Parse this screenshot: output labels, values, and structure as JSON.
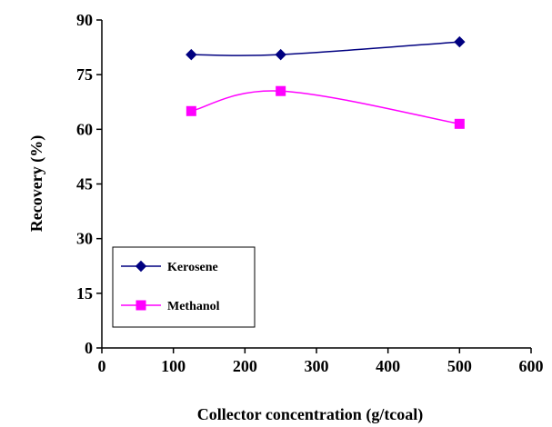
{
  "chart_data": {
    "type": "line",
    "xlabel": "Collector concentration (g/tcoal)",
    "ylabel": "Recovery (%)",
    "xlim": [
      0,
      600
    ],
    "ylim": [
      0,
      90
    ],
    "x_ticks": [
      "0",
      "100",
      "200",
      "300",
      "400",
      "500",
      "600"
    ],
    "y_ticks": [
      "0",
      "15",
      "30",
      "45",
      "60",
      "75",
      "90"
    ],
    "x": [
      125,
      250,
      500
    ],
    "series": [
      {
        "name": "Kerosene",
        "values": [
          80.5,
          80.5,
          84
        ],
        "color": "#000080",
        "marker": "diamond"
      },
      {
        "name": "Methanol",
        "values": [
          65,
          70.5,
          61.5
        ],
        "color": "#ff00ff",
        "marker": "square"
      }
    ],
    "legend_position": "bottom-left",
    "grid": false
  }
}
